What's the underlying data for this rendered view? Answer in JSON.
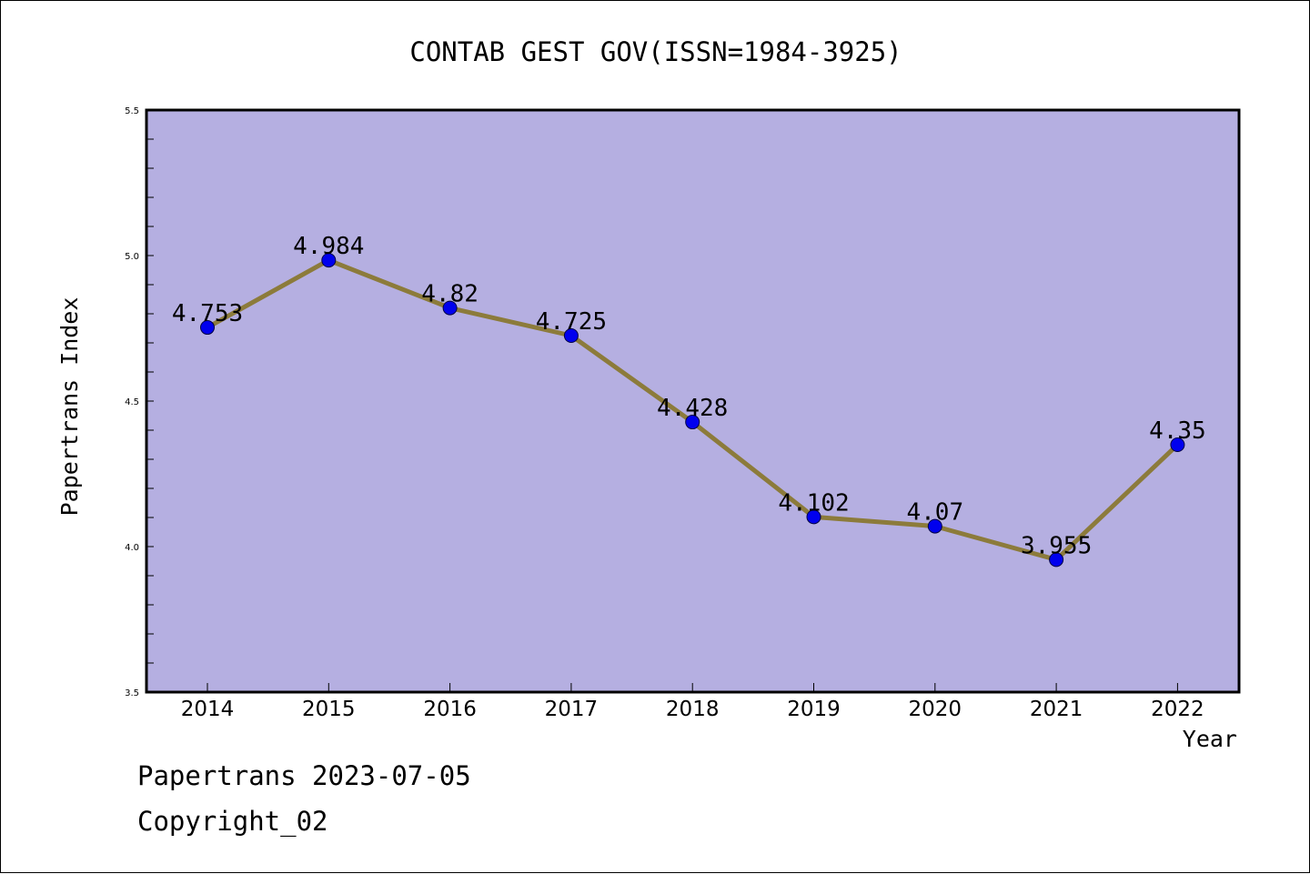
{
  "chart_data": {
    "type": "line",
    "title": "CONTAB GEST GOV(ISSN=1984-3925)",
    "xlabel": "Year",
    "ylabel": "Papertrans Index",
    "x": [
      "2014",
      "2015",
      "2016",
      "2017",
      "2018",
      "2019",
      "2020",
      "2021",
      "2022"
    ],
    "series": [
      {
        "values": [
          4.753,
          4.984,
          4.82,
          4.725,
          4.428,
          4.102,
          4.07,
          3.955,
          4.35
        ],
        "labels": [
          "4.753",
          "4.984",
          "4.82",
          "4.725",
          "4.428",
          "4.102",
          "4.07",
          "3.955",
          "4.35"
        ]
      }
    ],
    "ylim": [
      3.5,
      5.5
    ],
    "yticks": [
      "3.5",
      "4.0",
      "4.5",
      "5.0",
      "5.5"
    ],
    "grid": false,
    "colors": {
      "plot_background": "#b5afe1",
      "line": "#8c7b3b",
      "marker": "#0000ee"
    }
  },
  "footer": {
    "line1": "Papertrans 2023-07-05",
    "line2": "Copyright_02"
  }
}
